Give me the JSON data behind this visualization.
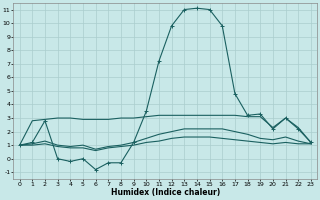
{
  "xlabel": "Humidex (Indice chaleur)",
  "xlim": [
    -0.5,
    23.5
  ],
  "ylim": [
    -1.5,
    11.5
  ],
  "xticks": [
    0,
    1,
    2,
    3,
    4,
    5,
    6,
    7,
    8,
    9,
    10,
    11,
    12,
    13,
    14,
    15,
    16,
    17,
    18,
    19,
    20,
    21,
    22,
    23
  ],
  "yticks": [
    -1,
    0,
    1,
    2,
    3,
    4,
    5,
    6,
    7,
    8,
    9,
    10,
    11
  ],
  "line_color": "#1a6060",
  "bg_color": "#c8e8e8",
  "grid_color": "#aacece",
  "line1_x": [
    0,
    1,
    2,
    3,
    4,
    5,
    6,
    7,
    8,
    9,
    10,
    11,
    12,
    13,
    14,
    15,
    16,
    17,
    18,
    19,
    20,
    21,
    22,
    23
  ],
  "line1_y": [
    1.0,
    1.2,
    2.8,
    0.0,
    -0.2,
    0.0,
    -0.8,
    -0.3,
    -0.3,
    1.2,
    3.5,
    7.2,
    9.8,
    11.0,
    11.1,
    11.0,
    9.8,
    4.8,
    3.2,
    3.3,
    2.2,
    3.0,
    2.2,
    1.2
  ],
  "line2_x": [
    0,
    1,
    2,
    3,
    4,
    5,
    6,
    7,
    8,
    9,
    10,
    11,
    12,
    13,
    14,
    15,
    16,
    17,
    18,
    19,
    20,
    21,
    22,
    23
  ],
  "line2_y": [
    1.0,
    2.8,
    2.9,
    3.0,
    3.0,
    2.9,
    2.9,
    2.9,
    3.0,
    3.0,
    3.1,
    3.2,
    3.2,
    3.2,
    3.2,
    3.2,
    3.2,
    3.2,
    3.1,
    3.1,
    2.3,
    3.0,
    2.3,
    1.2
  ],
  "line3_x": [
    0,
    1,
    2,
    3,
    4,
    5,
    6,
    7,
    8,
    9,
    10,
    11,
    12,
    13,
    14,
    15,
    16,
    17,
    18,
    19,
    20,
    21,
    22,
    23
  ],
  "line3_y": [
    1.0,
    1.1,
    1.3,
    1.0,
    0.9,
    1.0,
    0.7,
    0.9,
    1.0,
    1.2,
    1.5,
    1.8,
    2.0,
    2.2,
    2.2,
    2.2,
    2.2,
    2.0,
    1.8,
    1.5,
    1.4,
    1.6,
    1.3,
    1.1
  ],
  "line4_x": [
    0,
    1,
    2,
    3,
    4,
    5,
    6,
    7,
    8,
    9,
    10,
    11,
    12,
    13,
    14,
    15,
    16,
    17,
    18,
    19,
    20,
    21,
    22,
    23
  ],
  "line4_y": [
    1.0,
    1.0,
    1.1,
    0.9,
    0.8,
    0.8,
    0.6,
    0.8,
    0.9,
    1.0,
    1.2,
    1.3,
    1.5,
    1.6,
    1.6,
    1.6,
    1.5,
    1.4,
    1.3,
    1.2,
    1.1,
    1.2,
    1.1,
    1.1
  ]
}
